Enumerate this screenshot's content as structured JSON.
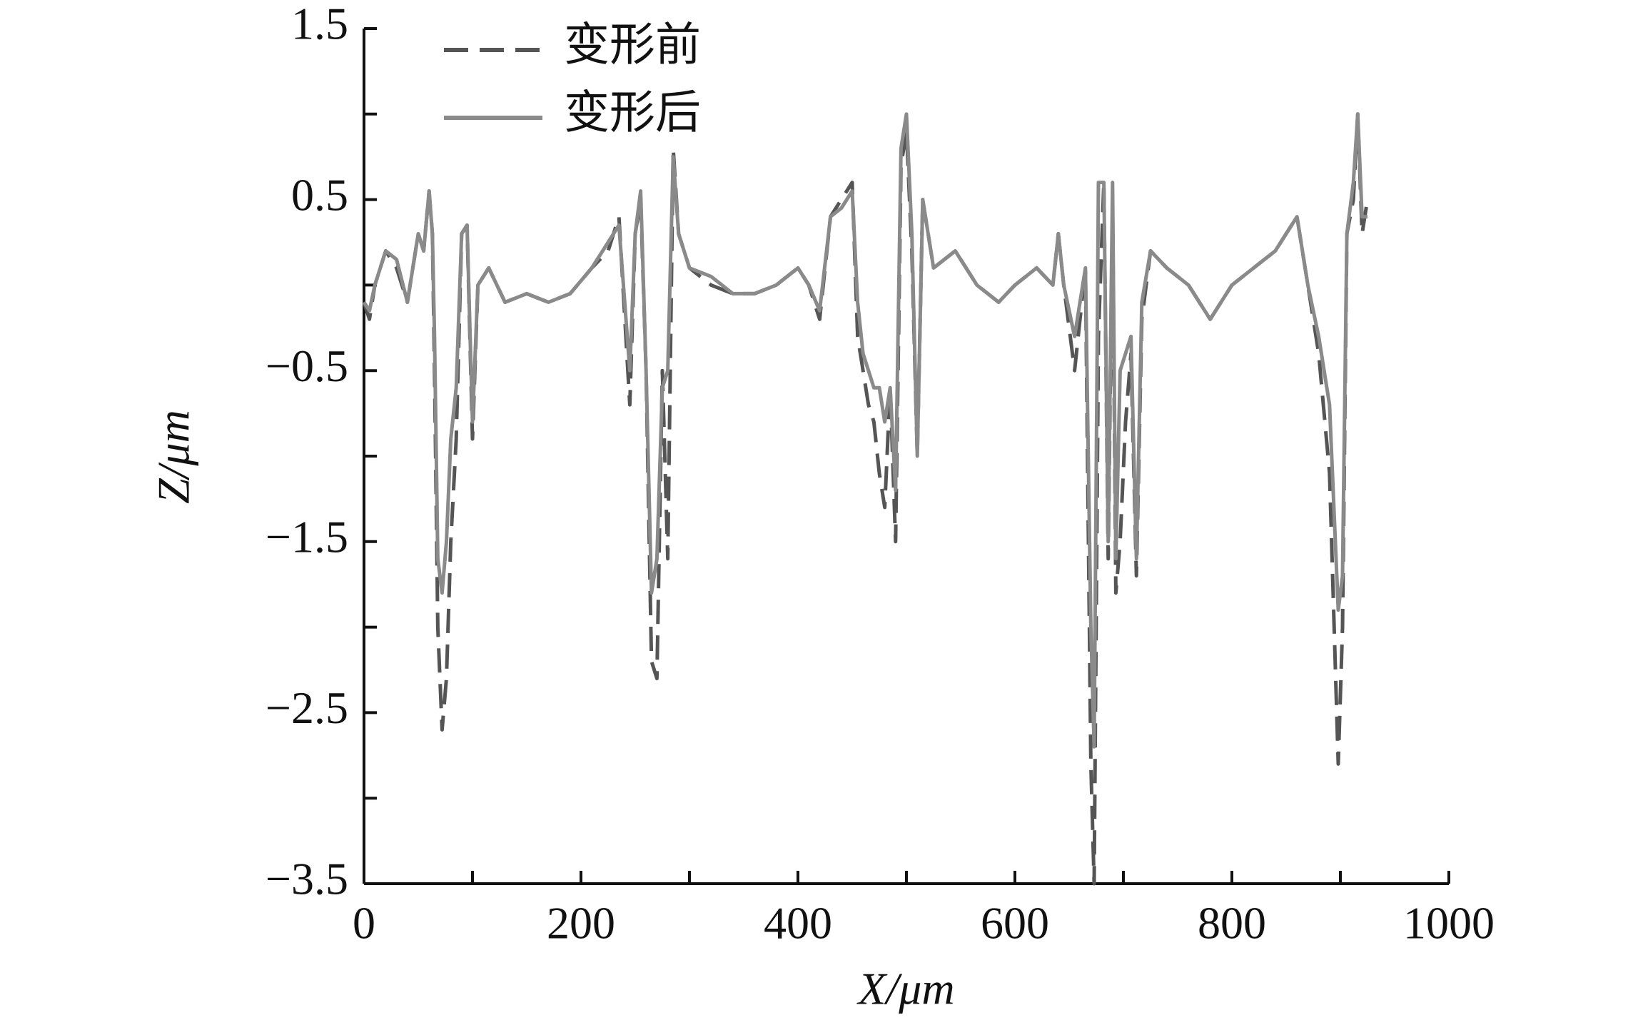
{
  "chart_data": {
    "type": "line",
    "xlabel": "X/μm",
    "ylabel": "Z/μm",
    "xlim": [
      0,
      1000
    ],
    "ylim": [
      -3.5,
      1.5
    ],
    "xticks": [
      0,
      200,
      400,
      600,
      800,
      1000
    ],
    "xminorticks": [
      100,
      300,
      500,
      700,
      900
    ],
    "yticks": [
      {
        "value": -3.5,
        "label": "−3.5"
      },
      {
        "value": -2.5,
        "label": "−2.5"
      },
      {
        "value": -1.5,
        "label": "−1.5"
      },
      {
        "value": -0.5,
        "label": "−0.5"
      },
      0.5,
      1.5
    ],
    "yminorticks": [
      -3,
      -2,
      -1,
      0,
      1
    ],
    "legend": "top-left",
    "x": [
      0,
      5,
      10,
      20,
      30,
      40,
      50,
      55,
      60,
      63,
      65,
      68,
      72,
      76,
      80,
      85,
      90,
      95,
      100,
      105,
      115,
      130,
      150,
      170,
      190,
      210,
      225,
      235,
      245,
      250,
      255,
      260,
      265,
      270,
      275,
      280,
      285,
      290,
      300,
      320,
      340,
      360,
      380,
      400,
      410,
      420,
      430,
      440,
      450,
      455,
      460,
      465,
      470,
      475,
      480,
      485,
      490,
      495,
      500,
      505,
      510,
      515,
      525,
      545,
      565,
      585,
      600,
      620,
      635,
      640,
      645,
      655,
      665,
      670,
      673,
      677,
      682,
      686,
      690,
      693,
      697,
      702,
      707,
      712,
      717,
      725,
      740,
      760,
      780,
      800,
      820,
      840,
      850,
      860,
      870,
      880,
      890,
      898,
      902,
      906,
      912,
      916,
      920,
      925
    ],
    "series": [
      {
        "name": "变形前",
        "color": "#555555",
        "dash": true,
        "values": [
          -0.1,
          -0.2,
          0.0,
          0.2,
          0.1,
          -0.1,
          0.3,
          0.2,
          0.55,
          0.3,
          -0.5,
          -2.0,
          -2.6,
          -2.3,
          -1.5,
          -0.9,
          0.3,
          0.35,
          -0.9,
          0.0,
          0.1,
          -0.1,
          -0.05,
          -0.1,
          -0.05,
          0.1,
          0.2,
          0.4,
          -0.7,
          0.3,
          0.5,
          -0.5,
          -2.2,
          -2.3,
          -0.5,
          -1.6,
          0.8,
          0.3,
          0.1,
          0.0,
          -0.05,
          -0.05,
          0.0,
          0.1,
          0.0,
          -0.2,
          0.4,
          0.5,
          0.6,
          -0.3,
          -0.5,
          -0.7,
          -0.8,
          -1.1,
          -1.3,
          -0.6,
          -1.5,
          0.7,
          0.9,
          0.2,
          -1.0,
          0.5,
          0.1,
          0.2,
          0.0,
          -0.1,
          0.0,
          0.1,
          0.0,
          0.3,
          0.0,
          -0.5,
          0.1,
          -2.8,
          -3.5,
          -0.3,
          0.6,
          -1.6,
          0.5,
          -1.8,
          -1.5,
          -0.8,
          -0.4,
          -1.7,
          -0.2,
          0.2,
          0.1,
          0.0,
          -0.2,
          0.0,
          0.1,
          0.2,
          0.3,
          0.4,
          0.0,
          -0.4,
          -1.1,
          -2.8,
          -2.0,
          0.3,
          0.5,
          1.0,
          0.3,
          0.5
        ]
      },
      {
        "name": "变形后",
        "color": "#8a8a8a",
        "dash": false,
        "values": [
          -0.1,
          -0.15,
          0.0,
          0.2,
          0.15,
          -0.1,
          0.3,
          0.2,
          0.55,
          0.3,
          -0.3,
          -1.6,
          -1.8,
          -1.5,
          -0.9,
          -0.6,
          0.3,
          0.35,
          -0.8,
          0.0,
          0.1,
          -0.1,
          -0.05,
          -0.1,
          -0.05,
          0.1,
          0.25,
          0.35,
          -0.5,
          0.3,
          0.55,
          -0.5,
          -1.8,
          -1.6,
          -0.6,
          -0.5,
          0.75,
          0.3,
          0.1,
          0.05,
          -0.05,
          -0.05,
          0.0,
          0.1,
          0.0,
          -0.15,
          0.4,
          0.45,
          0.55,
          -0.1,
          -0.4,
          -0.5,
          -0.6,
          -0.6,
          -0.8,
          -0.6,
          -1.2,
          0.8,
          1.0,
          0.3,
          -1.0,
          0.5,
          0.1,
          0.2,
          0.0,
          -0.1,
          0.0,
          0.1,
          0.0,
          0.3,
          0.0,
          -0.3,
          0.1,
          -2.0,
          -2.7,
          0.6,
          0.6,
          -1.5,
          0.6,
          -1.6,
          -0.5,
          -0.4,
          -0.3,
          -1.6,
          -0.1,
          0.2,
          0.1,
          0.0,
          -0.2,
          0.0,
          0.1,
          0.2,
          0.3,
          0.4,
          0.0,
          -0.3,
          -0.7,
          -1.9,
          -1.7,
          0.3,
          0.6,
          1.0,
          0.4,
          0.4
        ]
      }
    ]
  }
}
